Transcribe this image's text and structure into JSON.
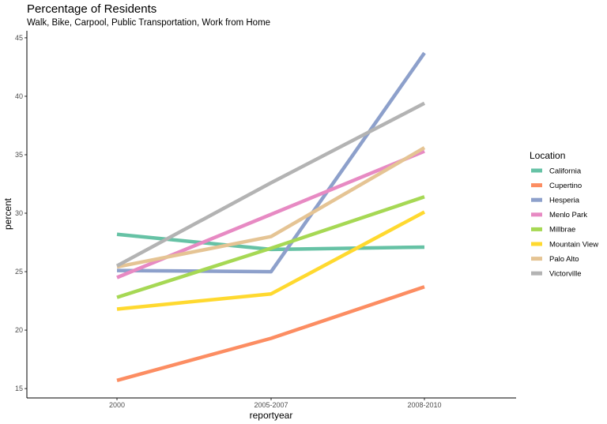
{
  "chart_data": {
    "type": "line",
    "title": "Percentage of Residents",
    "subtitle": "Walk, Bike, Carpool, Public Transportation, Work from Home",
    "xlabel": "reportyear",
    "ylabel": "percent",
    "categories": [
      "2000",
      "2005-2007",
      "2008-2010"
    ],
    "ylim": [
      14.2,
      45.6
    ],
    "yticks": [
      15,
      20,
      25,
      30,
      35,
      40,
      45
    ],
    "grid": false,
    "legend": {
      "title": "Location",
      "position": "right"
    },
    "series": [
      {
        "name": "California",
        "color": "#66C2A5",
        "values": [
          28.2,
          26.9,
          27.1
        ]
      },
      {
        "name": "Cupertino",
        "color": "#FC8D62",
        "values": [
          15.7,
          19.3,
          23.7
        ]
      },
      {
        "name": "Hesperia",
        "color": "#8DA0CB",
        "values": [
          25.1,
          25.0,
          43.7
        ]
      },
      {
        "name": "Menlo Park",
        "color": "#E78AC3",
        "values": [
          24.5,
          29.9,
          35.3
        ]
      },
      {
        "name": "Millbrae",
        "color": "#A6D854",
        "values": [
          22.8,
          27.0,
          31.4
        ]
      },
      {
        "name": "Mountain View",
        "color": "#FFD92F",
        "values": [
          21.8,
          23.1,
          30.1
        ]
      },
      {
        "name": "Palo Alto",
        "color": "#E5C494",
        "values": [
          25.4,
          28.0,
          35.6
        ]
      },
      {
        "name": "Victorville",
        "color": "#B3B3B3",
        "values": [
          25.5,
          32.6,
          39.4
        ]
      }
    ]
  }
}
